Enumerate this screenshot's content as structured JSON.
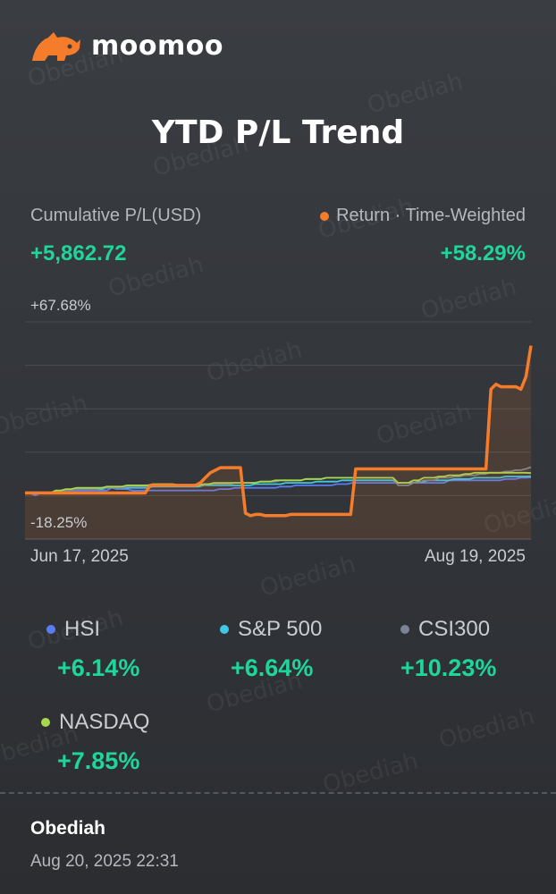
{
  "brand": {
    "name": "moomoo"
  },
  "title": "YTD P/L Trend",
  "summary": {
    "pl_label": "Cumulative P/L(USD)",
    "pl_value": "+5,862.72",
    "return_label": "Return · Time-Weighted",
    "return_value": "+58.29%"
  },
  "colors": {
    "accent_orange": "#f57c2a",
    "positive_green": "#1fd69a",
    "hsi": "#5b7bf0",
    "sp500": "#3fc8e4",
    "csi300": "#7a8496",
    "nasdaq": "#a8d94a"
  },
  "chart_data": {
    "type": "line",
    "x_start": "Jun 17, 2025",
    "x_end": "Aug 19, 2025",
    "y_max_label": "+67.68%",
    "y_min_label": "-18.25%",
    "ylim": [
      -18.25,
      67.68
    ],
    "grid": true,
    "series": [
      {
        "name": "Return · Time-Weighted",
        "color": "#f57c2a",
        "values": [
          0,
          0,
          0,
          0,
          0,
          0,
          0,
          0,
          0,
          0,
          0,
          0,
          0,
          0,
          0,
          0,
          0,
          0,
          0,
          0,
          0,
          0,
          0,
          0,
          0,
          3,
          3,
          3,
          3,
          3,
          3,
          3,
          3,
          3,
          3,
          4,
          6,
          8,
          9,
          10,
          10,
          10,
          10,
          10,
          -8,
          -9,
          -8.5,
          -8.5,
          -9,
          -9,
          -9,
          -9,
          -9,
          -8.5,
          -8.5,
          -8.5,
          -8.5,
          -8.5,
          -8.5,
          -8.5,
          -8.5,
          -8.5,
          -8.5,
          -8.5,
          -8.5,
          -8.5,
          9.5,
          9.5,
          9.5,
          9.5,
          9.5,
          9.5,
          9.5,
          9.5,
          9.5,
          9.5,
          9.5,
          9.5,
          9.5,
          9.5,
          9.5,
          9.5,
          9.5,
          9.5,
          9.5,
          9.5,
          9.5,
          9.5,
          9.5,
          9.5,
          9.5,
          9.5,
          9.5,
          41,
          43,
          42,
          42,
          42,
          42,
          41,
          46,
          58.29
        ]
      },
      {
        "name": "HSI",
        "color": "#5b7bf0",
        "values": [
          0,
          0,
          -1,
          0,
          0,
          0,
          0,
          0,
          0,
          1,
          1,
          1,
          1,
          1,
          1,
          1,
          1,
          2,
          1.5,
          1.5,
          1.5,
          1,
          1,
          1,
          1,
          1,
          1,
          1,
          1,
          1,
          1,
          1,
          1,
          1,
          1,
          1,
          1,
          1,
          1.5,
          1.5,
          1.5,
          2,
          2,
          2,
          2,
          2,
          2,
          2,
          2,
          2,
          2.5,
          2.5,
          2.5,
          3,
          3,
          3,
          3,
          3,
          3,
          3,
          3,
          3.5,
          3.5,
          3.5,
          4,
          4,
          4,
          4,
          4,
          4,
          4,
          4,
          4,
          4,
          4,
          4,
          4,
          4,
          4,
          4,
          4,
          4,
          4,
          5,
          5,
          5,
          5,
          5,
          5,
          5,
          5,
          5,
          5,
          5,
          5.5,
          5.5,
          5.5,
          6,
          6,
          6.14
        ]
      },
      {
        "name": "S&P 500",
        "color": "#3fc8e4",
        "values": [
          0,
          0,
          0,
          0,
          0,
          0,
          0.5,
          0.5,
          1,
          1,
          1.5,
          1.5,
          1.5,
          1.5,
          1.5,
          1.5,
          2,
          2,
          2,
          2,
          2,
          2,
          2,
          2,
          2,
          2.5,
          2.5,
          2.5,
          2.5,
          2.5,
          2.5,
          2.5,
          2.5,
          2.5,
          2.5,
          3,
          3,
          3,
          3,
          3,
          3,
          3,
          3,
          3,
          3,
          3.5,
          3.5,
          3.5,
          3.5,
          3.5,
          3.5,
          4,
          4,
          4,
          4,
          4,
          4,
          4.5,
          4.5,
          4.5,
          4.5,
          4.5,
          5,
          5,
          5,
          5,
          5,
          5,
          5,
          5,
          5,
          5,
          5,
          4,
          4,
          4,
          4,
          4.5,
          4.5,
          5,
          5,
          5,
          5,
          5,
          5.5,
          5.5,
          5.5,
          5.5,
          6,
          6,
          6,
          6,
          6,
          6,
          6.5,
          6.5,
          6.5,
          6.5,
          6.5,
          6.64
        ]
      },
      {
        "name": "CSI300",
        "color": "#7a8496",
        "values": [
          0,
          0,
          0,
          0,
          0,
          0,
          0.5,
          0.5,
          1,
          1,
          1.5,
          1.5,
          1.5,
          1.5,
          1.5,
          2,
          2,
          2,
          2,
          2,
          2.5,
          2.5,
          2.5,
          2.5,
          2.5,
          3,
          3,
          3,
          3,
          3,
          3,
          3,
          3,
          3,
          3,
          3,
          3.5,
          3.5,
          3.5,
          3.5,
          3.5,
          4,
          4,
          4,
          4,
          4,
          4.5,
          4.5,
          4.5,
          4.5,
          5,
          5,
          5,
          5,
          5,
          5.5,
          5.5,
          5.5,
          5.5,
          6,
          6,
          6,
          6,
          6,
          6,
          6,
          6,
          6,
          6,
          6,
          6,
          6,
          6,
          3,
          3,
          3,
          4,
          4,
          5,
          5,
          5,
          6,
          6,
          6,
          6.5,
          6.5,
          7,
          7,
          7,
          7.5,
          7.5,
          8,
          8,
          8,
          8.5,
          8.5,
          9,
          9,
          9.5,
          10.23
        ]
      },
      {
        "name": "NASDAQ",
        "color": "#a8d94a",
        "values": [
          0,
          0,
          0,
          0,
          0,
          0,
          1,
          1,
          1.5,
          1.5,
          2,
          2,
          2,
          2,
          2,
          2,
          2.5,
          2.5,
          2.5,
          2.5,
          3,
          3,
          3,
          3,
          3,
          3.5,
          3.5,
          3.5,
          3.5,
          3.5,
          3,
          3,
          3,
          3,
          3,
          3.5,
          3.5,
          4,
          4,
          4,
          4,
          4,
          4,
          4,
          4,
          4,
          4.5,
          4.5,
          4.5,
          5,
          5,
          5,
          5,
          5,
          5,
          5.5,
          5.5,
          5.5,
          5.5,
          6,
          6,
          6,
          6,
          6,
          6,
          6,
          6,
          6,
          6,
          6,
          6,
          6,
          6,
          4,
          4,
          4,
          5,
          5,
          6,
          6,
          6,
          6.5,
          6.5,
          7,
          7,
          7,
          7.5,
          7.5,
          8,
          8,
          8,
          8,
          8,
          8,
          8,
          8,
          8,
          8,
          8,
          7.85
        ]
      }
    ]
  },
  "benchmarks": [
    {
      "name": "HSI",
      "value": "+6.14%",
      "color": "#5b7bf0"
    },
    {
      "name": "S&P 500",
      "value": "+6.64%",
      "color": "#3fc8e4"
    },
    {
      "name": "CSI300",
      "value": "+10.23%",
      "color": "#7a8496"
    },
    {
      "name": "NASDAQ",
      "value": "+7.85%",
      "color": "#a8d94a"
    }
  ],
  "footer": {
    "user": "Obediah",
    "timestamp": "Aug 20, 2025 22:31"
  },
  "watermark": "Obediah"
}
